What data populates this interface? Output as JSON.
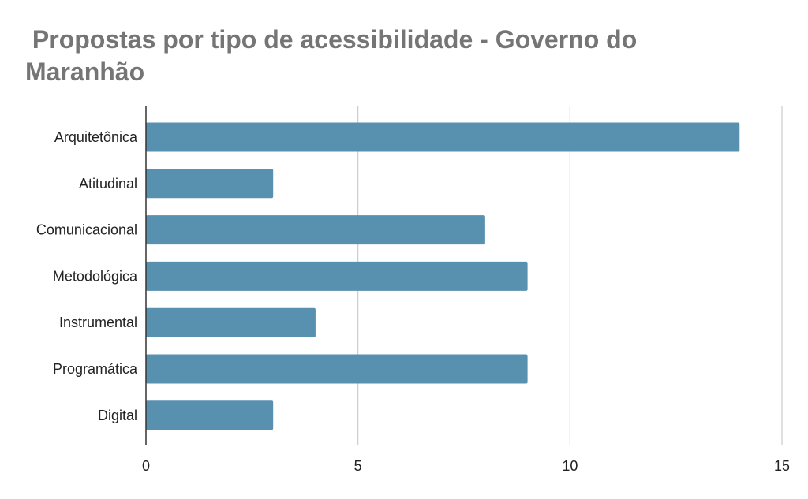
{
  "chart_data": {
    "type": "bar",
    "orientation": "horizontal",
    "title": " Propostas por tipo de acessibilidade - Governo do Maranhão",
    "xlabel": "",
    "ylabel": "",
    "categories": [
      "Arquitetônica",
      "Atitudinal",
      "Comunicacional",
      "Metodológica",
      "Instrumental",
      "Programática",
      "Digital"
    ],
    "values": [
      14,
      3,
      8,
      9,
      4,
      9,
      3
    ],
    "xlim": [
      0,
      15
    ],
    "xticks": [
      0,
      5,
      10,
      15
    ],
    "grid": "vertical",
    "legend": "none",
    "colors": {
      "bar": "#5890b0",
      "grid": "#cccccc",
      "axis": "#333333",
      "title": "#757575",
      "label": "#222222"
    }
  }
}
